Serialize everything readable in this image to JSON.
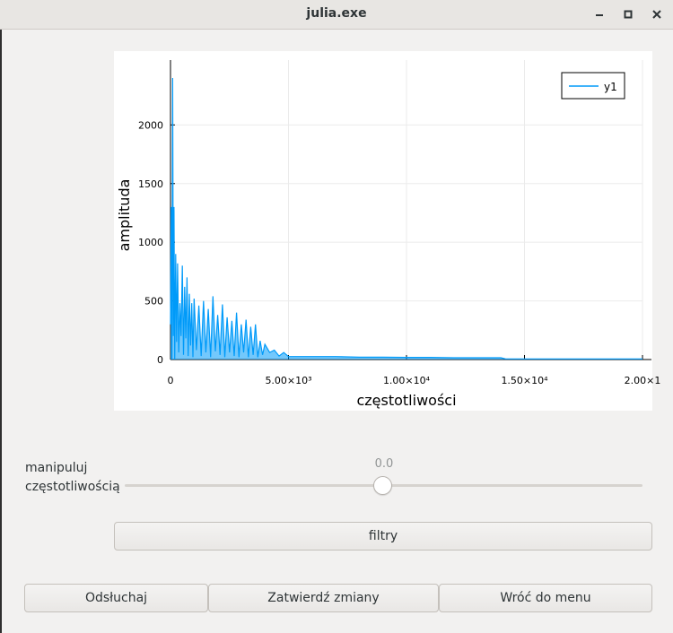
{
  "window": {
    "title": "julia.exe"
  },
  "chart_data": {
    "type": "line",
    "title": "",
    "xlabel": "częstotliwości",
    "ylabel": "amplituda",
    "xlim": [
      0,
      20000
    ],
    "ylim": [
      0,
      2400
    ],
    "grid": true,
    "legend": "top-right",
    "x_ticks": [
      0,
      5000,
      10000,
      15000,
      20000
    ],
    "x_tick_labels": [
      "0",
      "5.00×10³",
      "1.00×10⁴",
      "1.50×10⁴",
      "2.00×1"
    ],
    "y_ticks": [
      0,
      500,
      1000,
      1500,
      2000
    ],
    "y_tick_labels": [
      "0",
      "500",
      "1000",
      "1500",
      "2000"
    ],
    "series": [
      {
        "name": "y1",
        "color": "#009af9",
        "x": [
          0,
          30,
          60,
          90,
          120,
          150,
          180,
          220,
          260,
          300,
          350,
          400,
          450,
          500,
          550,
          600,
          650,
          700,
          750,
          800,
          850,
          900,
          950,
          1000,
          1100,
          1200,
          1300,
          1400,
          1500,
          1600,
          1700,
          1800,
          1900,
          2000,
          2100,
          2200,
          2300,
          2400,
          2500,
          2600,
          2700,
          2800,
          2900,
          3000,
          3100,
          3200,
          3300,
          3400,
          3500,
          3600,
          3700,
          3800,
          3900,
          4000,
          4200,
          4400,
          4600,
          4800,
          5000,
          6000,
          7000,
          8000,
          9000,
          10000,
          11000,
          12000,
          13000,
          14000,
          14200,
          15000,
          16000,
          17000,
          18000,
          19000,
          20000
        ],
        "y": [
          300,
          1300,
          0,
          2400,
          200,
          1300,
          0,
          900,
          150,
          820,
          60,
          480,
          200,
          800,
          40,
          620,
          180,
          700,
          30,
          560,
          120,
          480,
          20,
          520,
          80,
          460,
          30,
          500,
          60,
          430,
          20,
          540,
          70,
          380,
          40,
          470,
          20,
          360,
          60,
          330,
          30,
          400,
          20,
          300,
          60,
          340,
          20,
          280,
          40,
          300,
          20,
          160,
          40,
          130,
          60,
          80,
          30,
          60,
          25,
          25,
          25,
          20,
          20,
          18,
          18,
          15,
          15,
          15,
          5,
          5,
          5,
          5,
          5,
          5,
          5
        ]
      }
    ]
  },
  "slider": {
    "label_line1": "manipuluj",
    "label_line2": "częstotliwością",
    "value": "0.0",
    "level": 0.5
  },
  "buttons": {
    "filtry": "filtry",
    "odsluchaj": "Odsłuchaj",
    "zatwierdz": "Zatwierdź zmiany",
    "wroc": "Wróć do menu"
  }
}
